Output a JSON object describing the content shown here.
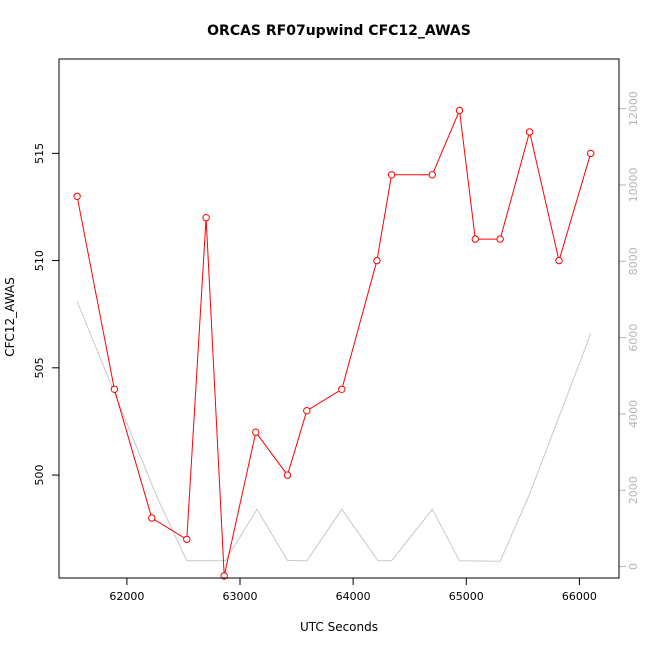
{
  "chart_data": {
    "type": "line",
    "title": "ORCAS RF07upwind CFC12_AWAS",
    "xlabel": "UTC Seconds",
    "ylabel": "CFC12_AWAS",
    "ylabel_right": "",
    "xlim": [
      61400,
      66350
    ],
    "ylim": [
      495.2,
      519.4
    ],
    "ylim_right": [
      -300,
      13300
    ],
    "x_ticks": [
      62000,
      63000,
      64000,
      65000,
      66000
    ],
    "x_tick_labels": [
      "62000",
      "63000",
      "64000",
      "65000",
      "66000"
    ],
    "y_ticks": [
      500,
      505,
      510,
      515
    ],
    "y_tick_labels": [
      "500",
      "505",
      "510",
      "515"
    ],
    "y_ticks_right": [
      0,
      2000,
      4000,
      6000,
      8000,
      10000,
      12000
    ],
    "y_tick_labels_right": [
      "0",
      "2000",
      "4000",
      "6000",
      "8000",
      "10000",
      "12000"
    ],
    "series": [
      {
        "color": "#ff0000",
        "axis": "left",
        "marker": "circle",
        "x": [
          61560,
          61890,
          62220,
          62530,
          62700,
          62860,
          63140,
          63420,
          63590,
          63900,
          64210,
          64340,
          64700,
          64940,
          65080,
          65300,
          65560,
          65820,
          66100
        ],
        "y": [
          513,
          504,
          498,
          497,
          512,
          495.3,
          502,
          500,
          503,
          504,
          510,
          514,
          514,
          517,
          511,
          511,
          516,
          510,
          515
        ]
      },
      {
        "color": "#c8c8c8",
        "axis": "right",
        "marker": "none",
        "x": [
          61560,
          62270,
          62530,
          62870,
          63150,
          63420,
          63590,
          63900,
          64220,
          64340,
          64700,
          64940,
          65300,
          65560,
          66100
        ],
        "y": [
          6950,
          1800,
          150,
          150,
          1500,
          160,
          150,
          1500,
          150,
          150,
          1500,
          150,
          140,
          1900,
          6100
        ]
      }
    ]
  }
}
